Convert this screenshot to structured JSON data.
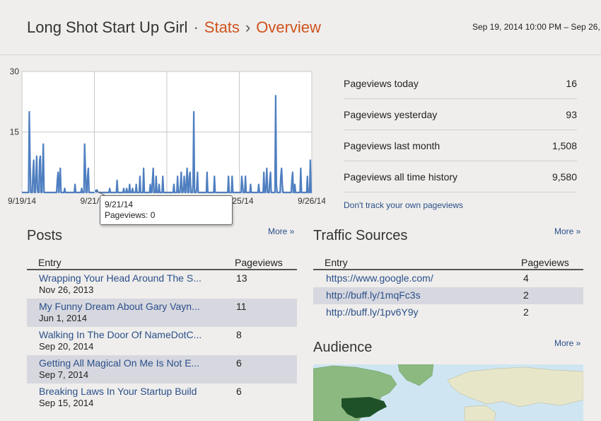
{
  "header": {
    "blog_title": "Long Shot Start Up Girl",
    "separator": "·",
    "crumb_stats": "Stats",
    "crumb_arrow": "›",
    "crumb_overview": "Overview",
    "date_range": "Sep 19, 2014 10:00 PM – Sep 26,"
  },
  "chart_data": {
    "type": "area",
    "ylim": [
      0,
      30
    ],
    "yticks": [
      "30",
      "15"
    ],
    "xticks": [
      "9/19/14",
      "9/21/14",
      "9/23/14",
      "9/25/14",
      "9/26/14"
    ],
    "series": [
      {
        "values": [
          0,
          0,
          0,
          0,
          0,
          0,
          0,
          0,
          0,
          0,
          20,
          8,
          0,
          0,
          0,
          5,
          8,
          0,
          0,
          4,
          9,
          1,
          0,
          0,
          8,
          9,
          0,
          0,
          5,
          12,
          0,
          0,
          0,
          0,
          0,
          0,
          0,
          0,
          0,
          0,
          0,
          0,
          0,
          0,
          0,
          0,
          0,
          0,
          3,
          5,
          0,
          3,
          6,
          0,
          0,
          0,
          0,
          0,
          1,
          0,
          0,
          0,
          0,
          0,
          0,
          0,
          0,
          0,
          0,
          0,
          0,
          0,
          2,
          0,
          0,
          0,
          0,
          0,
          0,
          0,
          0,
          1,
          0,
          0,
          0,
          12,
          6,
          0,
          0,
          4,
          6,
          0,
          0,
          0,
          0,
          0,
          0,
          0,
          0,
          0,
          0,
          0,
          0,
          0,
          0,
          0,
          0,
          0,
          0,
          0,
          0,
          0,
          0,
          0,
          0,
          0,
          0,
          0,
          0,
          1,
          0,
          0,
          0,
          0,
          0,
          0,
          0,
          0,
          0,
          3,
          0,
          0,
          0,
          0,
          0,
          0,
          0,
          0,
          1,
          0,
          0,
          0,
          1,
          0,
          0,
          0,
          2,
          0,
          0,
          0,
          1,
          0,
          0,
          0,
          0,
          2,
          0,
          0,
          0,
          0,
          4,
          0,
          0,
          0,
          0,
          6,
          0,
          0,
          0,
          0,
          0,
          0,
          0,
          0,
          2,
          0,
          0,
          3,
          6,
          0,
          0,
          0,
          4,
          0,
          0,
          0,
          2,
          0,
          0,
          0,
          0,
          4,
          0,
          0,
          0,
          0,
          0,
          0,
          0,
          0,
          0,
          0,
          0,
          0,
          0,
          0,
          2,
          0,
          0,
          0,
          0,
          4,
          0,
          0,
          0,
          2,
          5,
          0,
          0,
          1,
          4,
          0,
          0,
          3,
          6,
          0,
          0,
          4,
          5,
          0,
          0,
          0,
          2,
          20,
          0,
          0,
          0,
          1,
          5,
          0,
          0,
          0,
          0,
          0,
          0,
          0,
          0,
          0,
          0,
          0,
          0,
          5,
          0,
          0,
          0,
          0,
          0,
          0,
          0,
          0,
          0,
          4,
          0,
          0,
          0,
          0,
          0,
          0,
          0,
          0,
          0,
          0,
          0,
          0,
          0,
          0,
          0,
          0,
          0,
          0,
          4,
          0,
          0,
          0,
          0,
          4,
          0,
          0,
          0,
          0,
          0,
          0,
          0,
          0,
          0,
          0,
          0,
          0,
          4,
          2,
          0,
          0,
          0,
          4,
          0,
          0,
          0,
          0,
          0,
          0,
          2,
          0,
          0,
          0,
          0,
          0,
          0,
          0,
          0,
          0,
          0,
          2,
          0,
          0,
          0,
          0,
          0,
          0,
          5,
          0,
          0,
          2,
          6,
          0,
          0,
          0,
          3,
          5,
          0,
          0,
          0,
          0,
          0,
          0,
          24,
          2,
          0,
          0,
          0,
          0,
          0,
          4,
          6,
          2,
          0,
          0,
          0,
          0,
          0,
          0,
          0,
          0,
          0,
          0,
          0,
          0,
          3,
          5,
          0,
          0,
          2,
          0,
          0,
          0,
          0,
          0,
          0,
          0,
          6,
          0,
          0,
          0,
          0,
          0,
          0,
          0,
          0,
          4,
          0,
          0,
          0,
          8,
          0,
          0
        ]
      }
    ]
  },
  "tooltip": {
    "date": "9/21/14",
    "text": "Pageviews: 0"
  },
  "stats": {
    "rows": [
      {
        "label": "Pageviews today",
        "value": "16"
      },
      {
        "label": "Pageviews yesterday",
        "value": "93"
      },
      {
        "label": "Pageviews last month",
        "value": "1,508"
      },
      {
        "label": "Pageviews all time history",
        "value": "9,580"
      }
    ],
    "dont_track": "Don't track your own pageviews"
  },
  "posts": {
    "title": "Posts",
    "more": "More »",
    "col_entry": "Entry",
    "col_pageviews": "Pageviews",
    "rows": [
      {
        "entry": "Wrapping Your Head Around The S...",
        "date": "Nov 26, 2013",
        "pageviews": "13"
      },
      {
        "entry": "My Funny Dream About Gary Vayn...",
        "date": "Jun 1, 2014",
        "pageviews": "11"
      },
      {
        "entry": "Walking In The Door Of NameDotC...",
        "date": "Sep 20, 2014",
        "pageviews": "8"
      },
      {
        "entry": "Getting All Magical On Me Is Not E...",
        "date": "Sep 7, 2014",
        "pageviews": "6"
      },
      {
        "entry": "Breaking Laws In Your Startup Build",
        "date": "Sep 15, 2014",
        "pageviews": "6"
      }
    ]
  },
  "traffic": {
    "title": "Traffic Sources",
    "more": "More »",
    "col_entry": "Entry",
    "col_pageviews": "Pageviews",
    "rows": [
      {
        "entry": "https://www.google.com/",
        "pageviews": "4"
      },
      {
        "entry": "http://buff.ly/1mqFc3s",
        "pageviews": "2"
      },
      {
        "entry": "http://buff.ly/1pv6Y9y",
        "pageviews": "2"
      }
    ]
  },
  "audience": {
    "title": "Audience",
    "more": "More »"
  },
  "colors": {
    "accent": "#d0521e",
    "link": "#2a4f8a",
    "line": "#4f7fc0",
    "area": "#a8bde0"
  }
}
